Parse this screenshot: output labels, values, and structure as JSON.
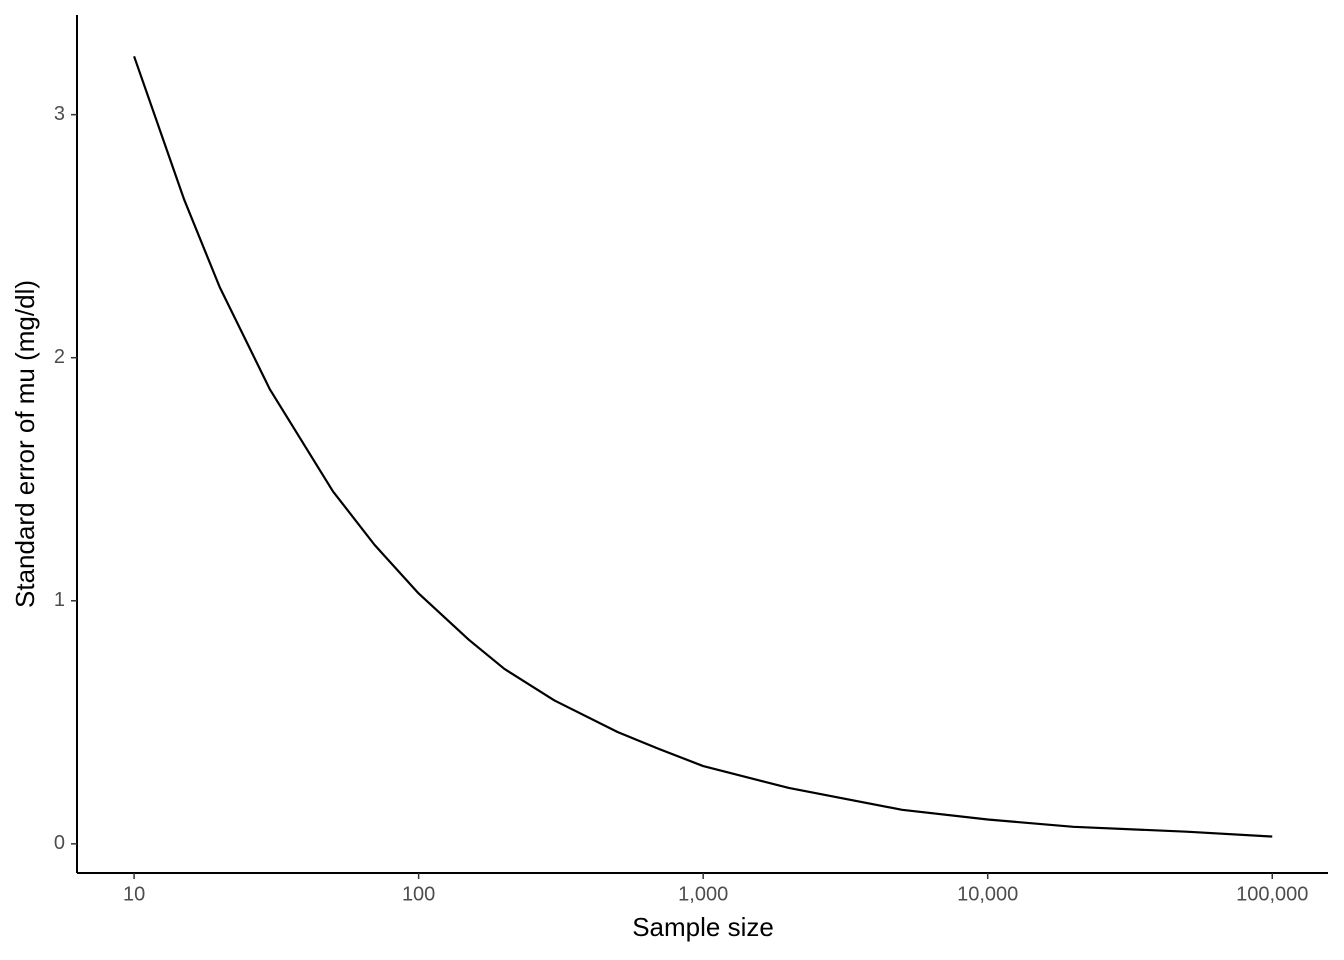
{
  "chart_data": {
    "type": "line",
    "x_label": "Sample size",
    "y_label": "Standard error of mu (mg/dl)",
    "x_scale": "log",
    "x": [
      10,
      15,
      20,
      30,
      50,
      70,
      100,
      150,
      200,
      300,
      500,
      700,
      1000,
      2000,
      5000,
      10000,
      20000,
      50000,
      100000
    ],
    "series": [
      {
        "color": "#000000",
        "values": [
          3.24,
          2.65,
          2.29,
          1.87,
          1.45,
          1.23,
          1.03,
          0.84,
          0.72,
          0.59,
          0.46,
          0.39,
          0.32,
          0.23,
          0.14,
          0.1,
          0.07,
          0.05,
          0.03
        ]
      }
    ],
    "xlim": [
      6.3,
      157000
    ],
    "xticks": [
      10,
      100,
      {
        "value": 1000,
        "label": "1,000"
      },
      {
        "value": 10000,
        "label": "10,000"
      },
      {
        "value": 100000,
        "label": "100,000"
      }
    ],
    "ylim": [
      -0.12,
      3.41
    ],
    "yticks": [
      0,
      1,
      2,
      3
    ],
    "grid": false
  }
}
